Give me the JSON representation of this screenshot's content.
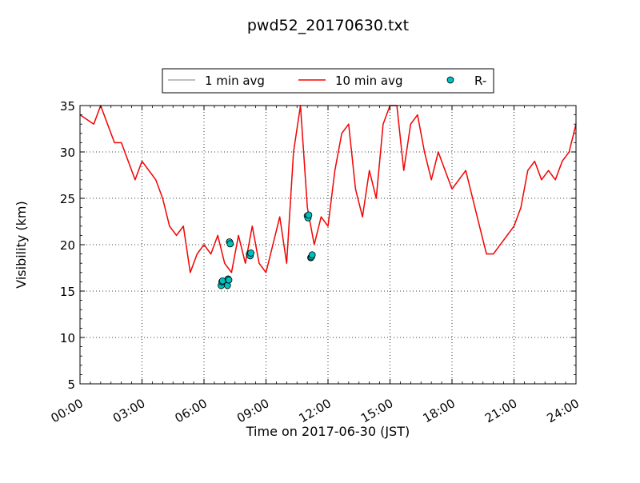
{
  "chart_data": {
    "type": "line",
    "title": "pwd52_20170630.txt",
    "xlabel": "Time on 2017-06-30 (JST)",
    "ylabel": "Visibility (km)",
    "xlim": [
      "00:00",
      "24:00"
    ],
    "ylim": [
      5,
      35
    ],
    "x_ticks": [
      "00:00",
      "03:00",
      "06:00",
      "09:00",
      "12:00",
      "15:00",
      "18:00",
      "21:00",
      "24:00"
    ],
    "y_ticks": [
      "5",
      "10",
      "15",
      "20",
      "25",
      "30",
      "35"
    ],
    "grid": true,
    "legend_position": "top-center",
    "legend": [
      {
        "label": "1 min avg",
        "color": "#aaaaaa",
        "style": "line"
      },
      {
        "label": "10 min avg",
        "color": "#ff0000",
        "style": "line"
      },
      {
        "label": "R-",
        "color": "#00bfbf",
        "style": "marker"
      }
    ],
    "series": [
      {
        "name": "10 min avg",
        "color": "#ff0000",
        "x": [
          "00:00",
          "00:20",
          "00:40",
          "01:00",
          "01:20",
          "01:40",
          "02:00",
          "02:20",
          "02:40",
          "03:00",
          "03:20",
          "03:40",
          "04:00",
          "04:20",
          "04:40",
          "05:00",
          "05:20",
          "05:40",
          "06:00",
          "06:20",
          "06:40",
          "07:00",
          "07:20",
          "07:40",
          "08:00",
          "08:20",
          "08:40",
          "09:00",
          "09:20",
          "09:40",
          "10:00",
          "10:20",
          "10:40",
          "11:00",
          "11:20",
          "11:40",
          "12:00",
          "12:20",
          "12:40",
          "13:00",
          "13:20",
          "13:40",
          "14:00",
          "14:20",
          "14:40",
          "15:00",
          "15:20",
          "15:40",
          "16:00",
          "16:20",
          "16:40",
          "17:00",
          "17:20",
          "17:40",
          "18:00",
          "18:20",
          "18:40",
          "19:00",
          "19:20",
          "19:40",
          "20:00",
          "20:20",
          "20:40",
          "21:00",
          "21:20",
          "21:40",
          "22:00",
          "22:20",
          "22:40",
          "23:00",
          "23:20",
          "23:40",
          "24:00"
        ],
        "values": [
          34,
          33.5,
          33,
          35,
          33,
          31,
          31,
          29,
          27,
          29,
          28,
          27,
          25,
          22,
          21,
          22,
          17,
          19,
          20,
          19,
          21,
          18,
          17,
          21,
          18,
          22,
          18,
          17,
          20,
          23,
          18,
          30,
          35,
          24,
          20,
          23,
          22,
          28,
          32,
          33,
          26,
          23,
          28,
          25,
          33,
          35,
          35,
          28,
          33,
          34,
          30,
          27,
          30,
          28,
          26,
          27,
          28,
          25,
          22,
          19,
          19,
          20,
          21,
          22,
          24,
          28,
          29,
          27,
          28,
          27,
          29,
          30,
          33
        ]
      },
      {
        "name": "1 min avg",
        "color": "#aaaaaa",
        "x": [
          "00:00",
          "00:20",
          "00:40",
          "01:00",
          "01:20",
          "01:40",
          "02:00",
          "02:20",
          "02:40",
          "03:00",
          "03:20",
          "03:40",
          "04:00",
          "04:20",
          "04:40",
          "05:00",
          "05:20",
          "05:40",
          "06:00",
          "06:20",
          "06:40",
          "07:00",
          "07:20",
          "07:40",
          "08:00",
          "08:20",
          "08:40",
          "09:00",
          "09:20",
          "09:40",
          "10:00",
          "10:20",
          "10:40",
          "11:00",
          "11:20",
          "11:40",
          "12:00",
          "12:20",
          "12:40",
          "13:00",
          "13:20",
          "13:40",
          "14:00",
          "14:20",
          "14:40",
          "15:00",
          "15:20",
          "15:40",
          "16:00",
          "16:20",
          "16:40",
          "17:00",
          "17:20",
          "17:40",
          "18:00",
          "18:20",
          "18:40",
          "19:00",
          "19:20",
          "19:40",
          "20:00",
          "20:20",
          "20:40",
          "21:00",
          "21:20",
          "21:40",
          "22:00",
          "22:20",
          "22:40",
          "23:00",
          "23:20",
          "23:40",
          "24:00"
        ],
        "values": [
          34,
          33.5,
          33,
          35,
          33,
          31,
          31,
          29,
          27,
          29,
          28,
          27,
          25,
          22,
          21,
          22,
          17,
          19,
          20,
          19,
          21,
          18,
          17,
          21,
          18,
          22,
          18,
          17,
          20,
          23,
          18,
          30,
          35,
          24,
          20,
          23,
          22,
          28,
          32,
          33,
          26,
          23,
          28,
          25,
          33,
          35,
          35,
          28,
          33,
          34,
          30,
          27,
          30,
          28,
          26,
          27,
          28,
          25,
          22,
          19,
          19,
          20,
          21,
          22,
          24,
          28,
          29,
          27,
          28,
          27,
          29,
          30,
          33
        ]
      },
      {
        "name": "R-",
        "color": "#00bfbf",
        "type": "scatter",
        "x": [
          "06:50",
          "06:52",
          "06:54",
          "07:08",
          "07:10",
          "07:12",
          "07:14",
          "07:16",
          "08:12",
          "08:14",
          "08:16",
          "11:00",
          "11:02",
          "11:04",
          "11:10",
          "11:12",
          "11:14"
        ],
        "values": [
          15.6,
          16.0,
          16.1,
          15.6,
          16.3,
          16.2,
          20.3,
          20.1,
          19.0,
          18.8,
          19.1,
          23.1,
          22.9,
          23.2,
          18.6,
          18.7,
          18.9
        ]
      }
    ]
  }
}
